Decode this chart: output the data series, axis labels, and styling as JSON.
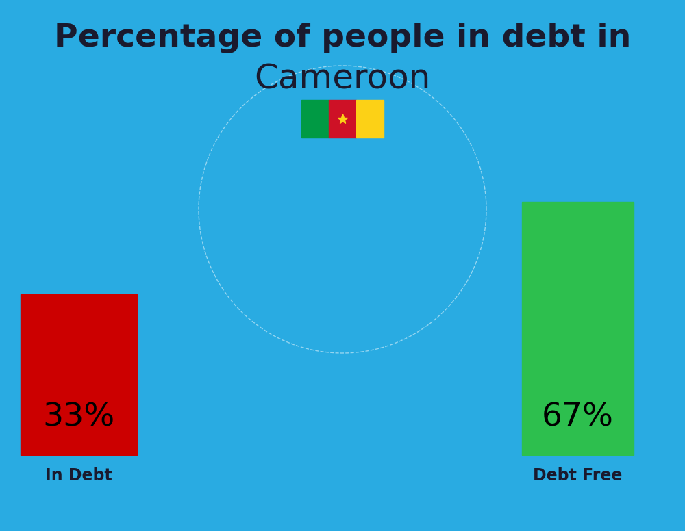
{
  "title_line1": "Percentage of people in debt in",
  "title_line2": "Cameroon",
  "background_color": "#29ABE2",
  "bar1_label": "33%",
  "bar1_color": "#CC0000",
  "bar1_category": "In Debt",
  "bar2_label": "67%",
  "bar2_color": "#2DBF4E",
  "bar2_category": "Debt Free",
  "title_color": "#1a1a2e",
  "label_color": "#1a1a2e",
  "pct_fontsize": 34,
  "cat_fontsize": 17,
  "title1_fontsize": 34,
  "title2_fontsize": 36,
  "flag_green": "#009A44",
  "flag_red": "#CE1126",
  "flag_yellow": "#FCD116",
  "star_color": "#FCD116"
}
